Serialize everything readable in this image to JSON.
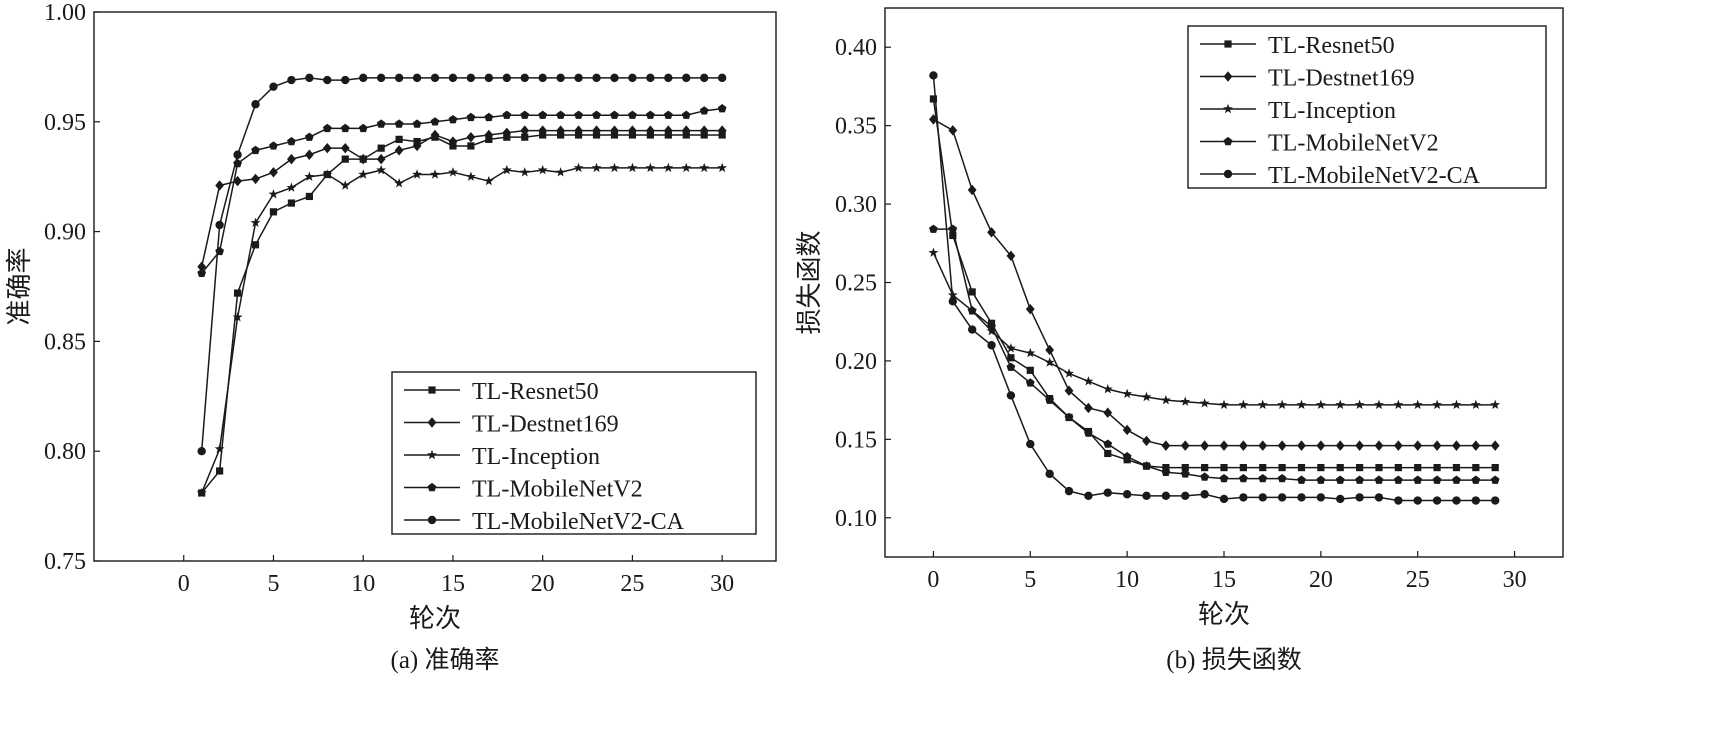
{
  "chart_data": [
    {
      "type": "line",
      "caption": "(a) 准确率",
      "xlabel": "轮次",
      "ylabel": "准确率",
      "xlim": [
        -5,
        33
      ],
      "ylim": [
        0.75,
        1.0
      ],
      "xticks": [
        0,
        5,
        10,
        15,
        20,
        25,
        30
      ],
      "xtick_labels": [
        "0",
        "5",
        "10",
        "15",
        "20",
        "25",
        "30"
      ],
      "yticks": [
        0.75,
        0.8,
        0.85,
        0.9,
        0.95,
        1.0
      ],
      "ytick_labels": [
        "0.75",
        "0.80",
        "0.85",
        "0.90",
        "0.95",
        "1.00"
      ],
      "grid": false,
      "legend_position": "bottom-right",
      "x": [
        1,
        2,
        3,
        4,
        5,
        6,
        7,
        8,
        9,
        10,
        11,
        12,
        13,
        14,
        15,
        16,
        17,
        18,
        19,
        20,
        21,
        22,
        23,
        24,
        25,
        26,
        27,
        28,
        29,
        30
      ],
      "series": [
        {
          "name": "TL-Resnet50",
          "marker": "square",
          "values": [
            0.781,
            0.791,
            0.872,
            0.894,
            0.909,
            0.913,
            0.916,
            0.926,
            0.933,
            0.933,
            0.938,
            0.942,
            0.941,
            0.943,
            0.939,
            0.939,
            0.942,
            0.943,
            0.943,
            0.944,
            0.944,
            0.944,
            0.944,
            0.944,
            0.944,
            0.944,
            0.944,
            0.944,
            0.944,
            0.944
          ]
        },
        {
          "name": "TL-Destnet169",
          "marker": "diamond",
          "values": [
            0.884,
            0.921,
            0.923,
            0.924,
            0.927,
            0.933,
            0.935,
            0.938,
            0.938,
            0.933,
            0.933,
            0.937,
            0.939,
            0.944,
            0.941,
            0.943,
            0.944,
            0.945,
            0.946,
            0.946,
            0.946,
            0.946,
            0.946,
            0.946,
            0.946,
            0.946,
            0.946,
            0.946,
            0.946,
            0.946
          ]
        },
        {
          "name": "TL-Inception",
          "marker": "star",
          "values": [
            0.781,
            0.801,
            0.861,
            0.904,
            0.917,
            0.92,
            0.925,
            0.926,
            0.921,
            0.926,
            0.928,
            0.922,
            0.926,
            0.926,
            0.927,
            0.925,
            0.923,
            0.928,
            0.927,
            0.928,
            0.927,
            0.929,
            0.929,
            0.929,
            0.929,
            0.929,
            0.929,
            0.929,
            0.929,
            0.929
          ]
        },
        {
          "name": "TL-MobileNetV2",
          "marker": "pentagon",
          "values": [
            0.881,
            0.891,
            0.931,
            0.937,
            0.939,
            0.941,
            0.943,
            0.947,
            0.947,
            0.947,
            0.949,
            0.949,
            0.949,
            0.95,
            0.951,
            0.952,
            0.952,
            0.953,
            0.953,
            0.953,
            0.953,
            0.953,
            0.953,
            0.953,
            0.953,
            0.953,
            0.953,
            0.953,
            0.955,
            0.956
          ]
        },
        {
          "name": "TL-MobileNetV2-CA",
          "marker": "circle",
          "values": [
            0.8,
            0.903,
            0.935,
            0.958,
            0.966,
            0.969,
            0.97,
            0.969,
            0.969,
            0.97,
            0.97,
            0.97,
            0.97,
            0.97,
            0.97,
            0.97,
            0.97,
            0.97,
            0.97,
            0.97,
            0.97,
            0.97,
            0.97,
            0.97,
            0.97,
            0.97,
            0.97,
            0.97,
            0.97,
            0.97
          ]
        }
      ]
    },
    {
      "type": "line",
      "caption": "(b) 损失函数",
      "xlabel": "轮次",
      "ylabel": "损失函数",
      "xlim": [
        -2.5,
        32.5
      ],
      "ylim": [
        0.075,
        0.425
      ],
      "xticks": [
        0,
        5,
        10,
        15,
        20,
        25,
        30
      ],
      "xtick_labels": [
        "0",
        "5",
        "10",
        "15",
        "20",
        "25",
        "30"
      ],
      "yticks": [
        0.1,
        0.15,
        0.2,
        0.25,
        0.3,
        0.35,
        0.4
      ],
      "ytick_labels": [
        "0.10",
        "0.15",
        "0.20",
        "0.25",
        "0.30",
        "0.35",
        "0.40"
      ],
      "grid": false,
      "legend_position": "top-right",
      "x": [
        0,
        1,
        2,
        3,
        4,
        5,
        6,
        7,
        8,
        9,
        10,
        11,
        12,
        13,
        14,
        15,
        16,
        17,
        18,
        19,
        20,
        21,
        22,
        23,
        24,
        25,
        26,
        27,
        28,
        29
      ],
      "series": [
        {
          "name": "TL-Resnet50",
          "marker": "square",
          "values": [
            0.367,
            0.28,
            0.244,
            0.224,
            0.202,
            0.194,
            0.176,
            0.164,
            0.155,
            0.141,
            0.137,
            0.133,
            0.132,
            0.132,
            0.132,
            0.132,
            0.132,
            0.132,
            0.132,
            0.132,
            0.132,
            0.132,
            0.132,
            0.132,
            0.132,
            0.132,
            0.132,
            0.132,
            0.132,
            0.132
          ]
        },
        {
          "name": "TL-Destnet169",
          "marker": "diamond",
          "values": [
            0.354,
            0.347,
            0.309,
            0.282,
            0.267,
            0.233,
            0.207,
            0.181,
            0.17,
            0.167,
            0.156,
            0.149,
            0.146,
            0.146,
            0.146,
            0.146,
            0.146,
            0.146,
            0.146,
            0.146,
            0.146,
            0.146,
            0.146,
            0.146,
            0.146,
            0.146,
            0.146,
            0.146,
            0.146,
            0.146
          ]
        },
        {
          "name": "TL-Inception",
          "marker": "star",
          "values": [
            0.269,
            0.242,
            0.232,
            0.219,
            0.208,
            0.205,
            0.199,
            0.192,
            0.187,
            0.182,
            0.179,
            0.177,
            0.175,
            0.174,
            0.173,
            0.172,
            0.172,
            0.172,
            0.172,
            0.172,
            0.172,
            0.172,
            0.172,
            0.172,
            0.172,
            0.172,
            0.172,
            0.172,
            0.172,
            0.172
          ]
        },
        {
          "name": "TL-MobileNetV2",
          "marker": "pentagon",
          "values": [
            0.284,
            0.284,
            0.232,
            0.222,
            0.196,
            0.186,
            0.175,
            0.164,
            0.154,
            0.147,
            0.139,
            0.133,
            0.129,
            0.128,
            0.126,
            0.125,
            0.125,
            0.125,
            0.125,
            0.124,
            0.124,
            0.124,
            0.124,
            0.124,
            0.124,
            0.124,
            0.124,
            0.124,
            0.124,
            0.124
          ]
        },
        {
          "name": "TL-MobileNetV2-CA",
          "marker": "circle",
          "values": [
            0.382,
            0.238,
            0.22,
            0.21,
            0.178,
            0.147,
            0.128,
            0.117,
            0.114,
            0.116,
            0.115,
            0.114,
            0.114,
            0.114,
            0.115,
            0.112,
            0.113,
            0.113,
            0.113,
            0.113,
            0.113,
            0.112,
            0.113,
            0.113,
            0.111,
            0.111,
            0.111,
            0.111,
            0.111,
            0.111
          ]
        }
      ]
    }
  ]
}
